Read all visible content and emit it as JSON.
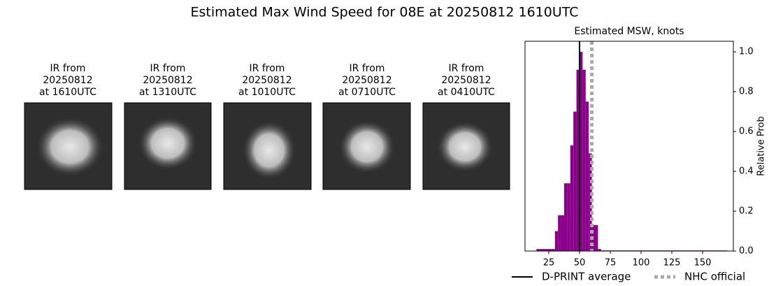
{
  "title": "Estimated Max Wind Speed for 08E at 20250812 1610UTC",
  "panels": [
    {
      "lines": [
        "IR from",
        "20250812",
        "at 1610UTC"
      ]
    },
    {
      "lines": [
        "IR from",
        "20250812",
        "at 1310UTC"
      ]
    },
    {
      "lines": [
        "IR from",
        "20250812",
        "at 1010UTC"
      ]
    },
    {
      "lines": [
        "IR from",
        "20250812",
        "at 0710UTC"
      ]
    },
    {
      "lines": [
        "IR from",
        "20250812",
        "at 0410UTC"
      ]
    }
  ],
  "chart_data": {
    "type": "histogram",
    "title": "Estimated MSW, knots",
    "y_label": "Relative Prob",
    "bins": [
      15,
      30,
      32.5,
      35,
      37.5,
      40,
      42.5,
      45,
      47.5,
      50,
      52.5,
      55,
      57.5,
      60,
      62.5,
      65,
      67.5,
      170
    ],
    "values": [
      0.01,
      0.1,
      0.18,
      0.18,
      0.34,
      0.34,
      0.53,
      0.7,
      0.91,
      1.0,
      0.91,
      0.75,
      0.49,
      0.13,
      0.13,
      0.01,
      0.003
    ],
    "color": "#8b008b",
    "xlim": [
      5.7,
      175
    ],
    "xticks": [
      25,
      50,
      75,
      100,
      125,
      150
    ],
    "ylim": [
      0,
      1.053
    ],
    "yticks": [
      {
        "value": 0,
        "label": "0.0"
      },
      {
        "value": 0.2,
        "label": "0.2"
      },
      {
        "value": 0.4,
        "label": "0.4"
      },
      {
        "value": 0.6,
        "label": "0.6"
      },
      {
        "value": 0.8,
        "label": "0.8"
      },
      {
        "value": 1.0,
        "label": "1.0"
      }
    ],
    "lines": [
      {
        "name": "D-PRINT average",
        "x": 50,
        "color": "#000000",
        "style": "solid"
      },
      {
        "name": "NHC official",
        "x": 60,
        "color": "#aaaaaa",
        "style": "dotted"
      }
    ]
  }
}
